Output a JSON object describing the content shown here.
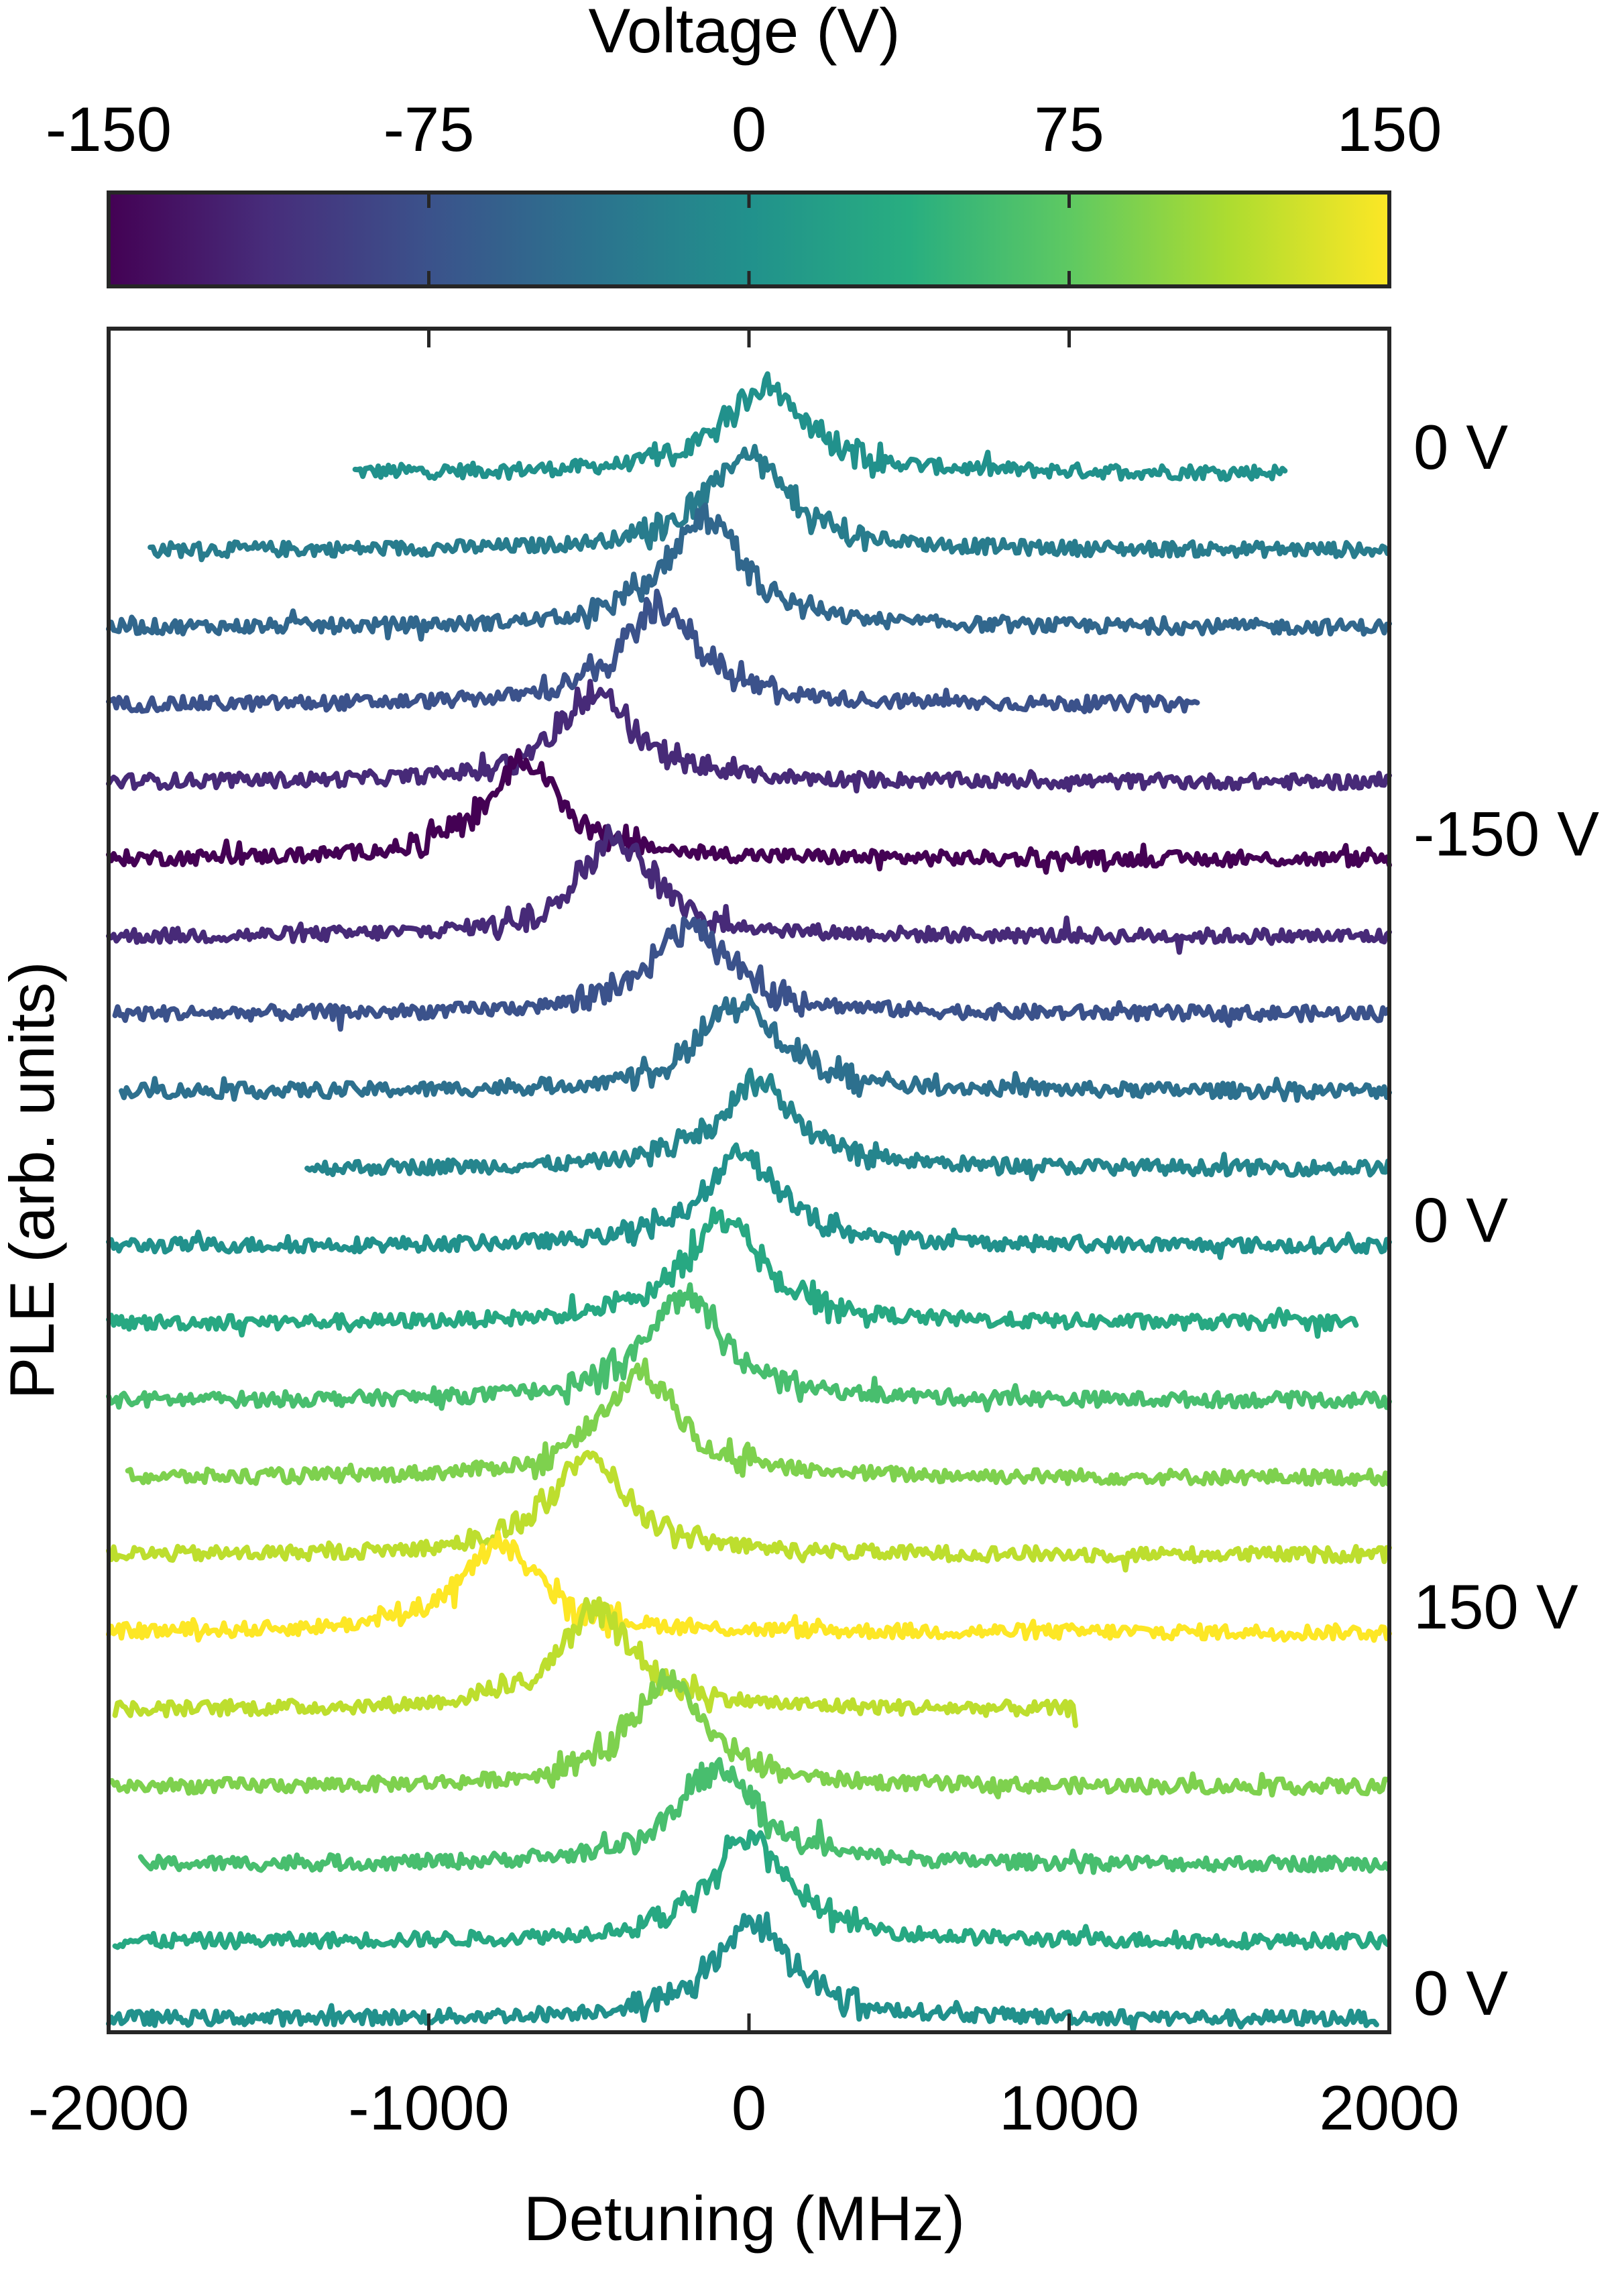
{
  "chart_data": {
    "type": "line",
    "xlabel": "Detuning (MHz)",
    "ylabel": "PLE (arb. units)",
    "xlim": [
      -2000,
      2000
    ],
    "xticks": [
      -2000,
      -1000,
      0,
      1000,
      2000
    ],
    "yticks": "none",
    "grid": false,
    "colorbar": {
      "label": "Voltage (V)",
      "range": [
        -150,
        150
      ],
      "ticks": [
        -150,
        -75,
        0,
        75,
        150
      ],
      "colormap": "viridis",
      "placement": "top"
    },
    "series_order": "top to bottom, vertically offset",
    "series": [
      {
        "voltage": 0,
        "x_start": -1230,
        "x_end": 1680,
        "peak_x": 50,
        "peak_height": 0.55
      },
      {
        "voltage": -25,
        "x_start": -1870,
        "x_end": 2000,
        "peak_x": -10,
        "peak_height": 0.6
      },
      {
        "voltage": -50,
        "x_start": -2000,
        "x_end": 2000,
        "peak_x": -140,
        "peak_height": 0.65
      },
      {
        "voltage": -75,
        "x_start": -2000,
        "x_end": 1400,
        "peak_x": -280,
        "peak_height": 0.6
      },
      {
        "voltage": -115,
        "x_start": -2000,
        "x_end": 2000,
        "peak_x": -480,
        "peak_height": 0.55
      },
      {
        "voltage": -150,
        "x_start": -2000,
        "x_end": 2000,
        "peak_x": -700,
        "peak_height": 0.6
      },
      {
        "voltage": -115,
        "x_start": -2000,
        "x_end": 2000,
        "peak_x": -420,
        "peak_height": 0.6
      },
      {
        "voltage": -75,
        "x_start": -1980,
        "x_end": 2000,
        "peak_x": -180,
        "peak_height": 0.55
      },
      {
        "voltage": -40,
        "x_start": -1960,
        "x_end": 2000,
        "peak_x": -30,
        "peak_height": 0.55
      },
      {
        "voltage": -15,
        "x_start": -1380,
        "x_end": 2000,
        "peak_x": 30,
        "peak_height": 0.55
      },
      {
        "voltage": 0,
        "x_start": -2000,
        "x_end": 2000,
        "peak_x": -20,
        "peak_height": 0.55
      },
      {
        "voltage": 30,
        "x_start": -2000,
        "x_end": 1900,
        "peak_x": -80,
        "peak_height": 0.65
      },
      {
        "voltage": 60,
        "x_start": -2000,
        "x_end": 2000,
        "peak_x": -200,
        "peak_height": 0.65
      },
      {
        "voltage": 90,
        "x_start": -1940,
        "x_end": 2000,
        "peak_x": -340,
        "peak_height": 0.65
      },
      {
        "voltage": 120,
        "x_start": -2000,
        "x_end": 2000,
        "peak_x": -500,
        "peak_height": 0.6
      },
      {
        "voltage": 150,
        "x_start": -2000,
        "x_end": 2000,
        "peak_x": -780,
        "peak_height": 0.55
      },
      {
        "voltage": 120,
        "x_start": -1980,
        "x_end": 1020,
        "peak_x": -480,
        "peak_height": 0.6
      },
      {
        "voltage": 90,
        "x_start": -1990,
        "x_end": 2000,
        "peak_x": -260,
        "peak_height": 0.65
      },
      {
        "voltage": 60,
        "x_start": -1900,
        "x_end": 2000,
        "peak_x": -100,
        "peak_height": 0.6
      },
      {
        "voltage": 30,
        "x_start": -1980,
        "x_end": 2000,
        "peak_x": -10,
        "peak_height": 0.65
      },
      {
        "voltage": 0,
        "x_start": -2000,
        "x_end": 1960,
        "peak_x": 10,
        "peak_height": 0.6
      }
    ],
    "annotations": [
      {
        "text": "0 V",
        "series_index": 0
      },
      {
        "text": "-150 V",
        "series_index": 5
      },
      {
        "text": "0 V",
        "series_index": 10
      },
      {
        "text": "150 V",
        "series_index": 15
      },
      {
        "text": "0 V",
        "series_index": 20
      }
    ]
  }
}
